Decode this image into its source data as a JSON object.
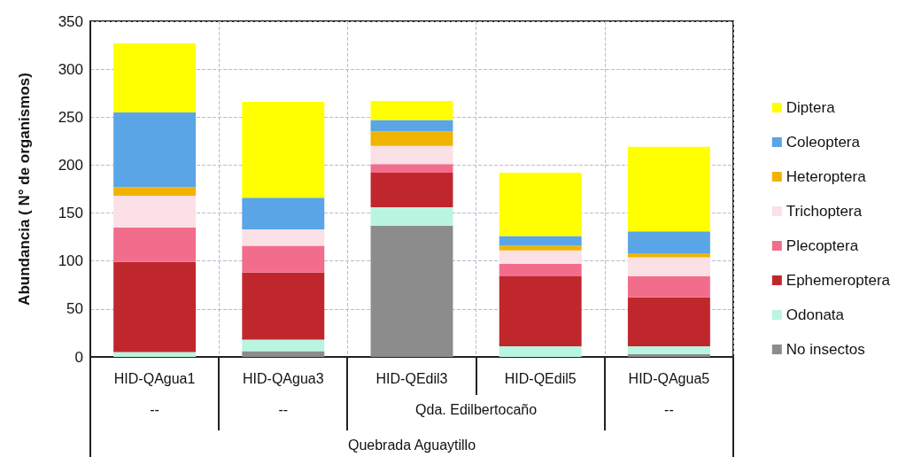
{
  "chart_data": {
    "type": "bar",
    "stacked": true,
    "ylabel": "Abundancia ( N° de organismos)",
    "categories": [
      "HID-QAgua1",
      "HID-QAgua3",
      "HID-QEdil3",
      "HID-QEdil5",
      "HID-QAgua5"
    ],
    "series": [
      {
        "name": "No insectos",
        "color": "#8c8c8c",
        "values": [
          0,
          6,
          137,
          0,
          3
        ]
      },
      {
        "name": "Odonata",
        "color": "#b9f5e0",
        "values": [
          5,
          12,
          19,
          11,
          8
        ]
      },
      {
        "name": "Ephemeroptera",
        "color": "#c0272d",
        "values": [
          94,
          70,
          36,
          73,
          51
        ]
      },
      {
        "name": "Plecoptera",
        "color": "#f26d8c",
        "values": [
          36,
          28,
          9,
          13,
          22
        ]
      },
      {
        "name": "Trichoptera",
        "color": "#fbe0e6",
        "values": [
          33,
          17,
          19,
          14,
          20
        ]
      },
      {
        "name": "Heteroptera",
        "color": "#f0b400",
        "values": [
          9,
          0,
          15,
          5,
          4
        ]
      },
      {
        "name": "Coleoptera",
        "color": "#5aa5e6",
        "values": [
          78,
          33,
          12,
          10,
          23
        ]
      },
      {
        "name": "Diptera",
        "color": "#ffff00",
        "values": [
          72,
          100,
          20,
          66,
          88
        ]
      }
    ],
    "ylim": [
      0,
      350
    ],
    "yticks": [
      0,
      50,
      100,
      150,
      200,
      250,
      300,
      350
    ],
    "grid": true,
    "legend": "right",
    "annotations": [
      "--",
      "--",
      "Qda. Edilbertocaño",
      "--",
      "Quebrada Aguaytillo"
    ]
  }
}
